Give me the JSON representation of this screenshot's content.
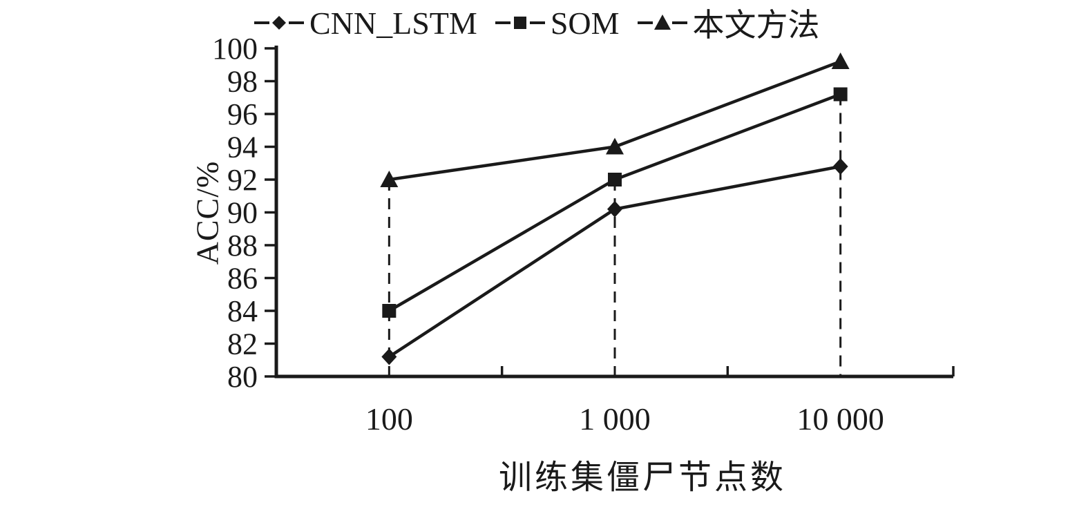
{
  "chart_data": {
    "type": "line",
    "title": "",
    "xlabel": "训练集僵尸节点数",
    "ylabel": "ACC/%",
    "categories": [
      "100",
      "1 000",
      "10 000"
    ],
    "series": [
      {
        "name": "CNN_LSTM",
        "marker": "diamond",
        "values": [
          81.2,
          90.2,
          92.8
        ]
      },
      {
        "name": "SOM",
        "marker": "square",
        "values": [
          84,
          92,
          97.2
        ]
      },
      {
        "name": "本文方法",
        "marker": "triangle",
        "values": [
          92,
          94,
          99.2
        ]
      }
    ],
    "ylim": [
      80,
      100
    ],
    "yticks": [
      80,
      82,
      84,
      86,
      88,
      90,
      92,
      94,
      96,
      98,
      100
    ],
    "guides": [
      {
        "category_index": 0,
        "from": 92,
        "to": 80
      },
      {
        "category_index": 1,
        "from": 92,
        "to": 80
      },
      {
        "category_index": 2,
        "from": 97.2,
        "to": 80
      }
    ],
    "legend_position": "top",
    "grid": false,
    "line_color": "#1a1a1a",
    "background_color": "#ffffff"
  }
}
